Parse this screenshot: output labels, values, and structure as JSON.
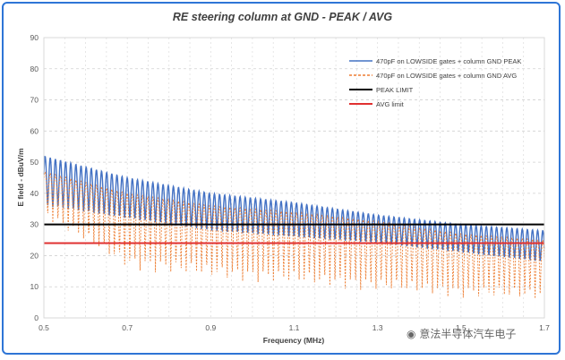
{
  "chart_data": {
    "type": "line",
    "title": "RE steering column at GND - PEAK / AVG",
    "xlabel": "Frequency (MHz)",
    "ylabel": "E field - dBuV/m",
    "xlim": [
      0.5,
      1.7
    ],
    "ylim": [
      0,
      90
    ],
    "x_ticks": [
      "0.5",
      "0.7",
      "0.9",
      "1.1",
      "1.3",
      "1.5",
      "1.7"
    ],
    "y_ticks": [
      "0",
      "10",
      "20",
      "30",
      "40",
      "50",
      "60",
      "70",
      "80",
      "90"
    ],
    "grid": "dashed horizontal and vertical",
    "legend_position": "top-right",
    "series": [
      {
        "name": "470pF on LOWSIDE gates + column GND PEAK",
        "color": "#4472c4",
        "style": "solid",
        "description": "periodic peaks every ~0.012 MHz",
        "envelope_x": [
          0.5,
          0.7,
          0.9,
          1.1,
          1.3,
          1.5,
          1.7
        ],
        "max_values": [
          52,
          45,
          40,
          37,
          33,
          30,
          28
        ],
        "min_values": [
          36,
          32,
          28,
          26,
          24,
          21,
          18
        ]
      },
      {
        "name": "470pF on LOWSIDE gates + column GND AVG",
        "color": "#ed7d31",
        "style": "dashed",
        "description": "periodic peaks every ~0.012 MHz",
        "envelope_x": [
          0.5,
          0.7,
          0.9,
          1.1,
          1.3,
          1.5,
          1.7
        ],
        "max_values": [
          47,
          40,
          36,
          34,
          31,
          27,
          25
        ],
        "min_values": [
          32,
          15,
          12,
          10,
          8,
          6,
          5
        ]
      },
      {
        "name": "PEAK LIMIT",
        "color": "#000000",
        "style": "solid",
        "x": [
          0.5,
          1.7
        ],
        "values": [
          30,
          30
        ]
      },
      {
        "name": "AVG limit",
        "color": "#e03030",
        "style": "solid",
        "x": [
          0.5,
          1.7
        ],
        "values": [
          24,
          24
        ]
      }
    ]
  },
  "watermark": "意法半导体汽车电子",
  "watermark_icon": "wechat-icon"
}
